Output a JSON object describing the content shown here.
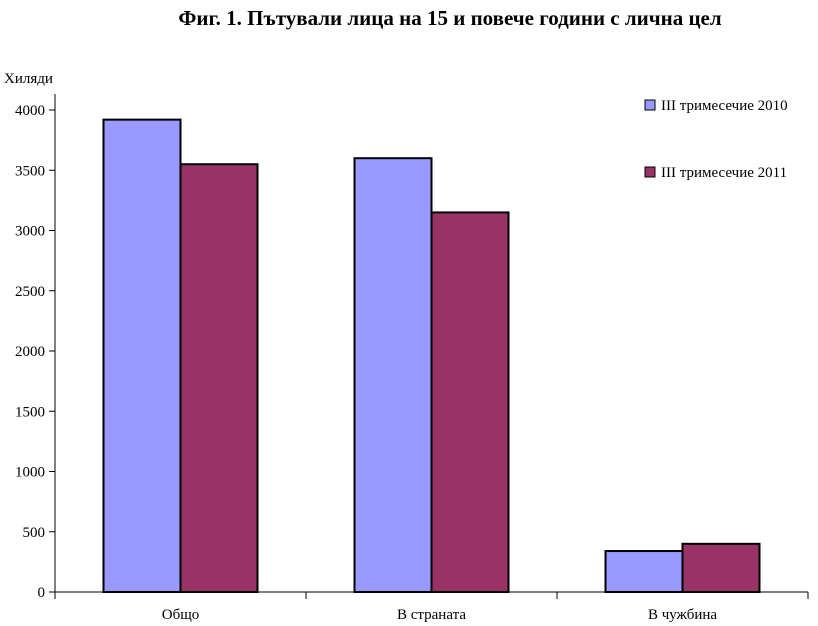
{
  "chart_data": {
    "type": "bar",
    "title": "Фиг. 1. Пътували лица на 15 и повече години с лична цел",
    "ylabel": "Хиляди",
    "xlabel": "",
    "categories": [
      "Общо",
      "В страната",
      "В чужбина"
    ],
    "series": [
      {
        "name": "III тримесечие 2010",
        "values": [
          3920,
          3600,
          340
        ],
        "color": "#9999ff"
      },
      {
        "name": "III тримесечие 2011",
        "values": [
          3550,
          3150,
          400
        ],
        "color": "#993366"
      }
    ],
    "ylim": [
      0,
      4000
    ],
    "yticks": [
      0,
      500,
      1000,
      1500,
      2000,
      2500,
      3000,
      3500,
      4000
    ],
    "grid": false,
    "legend": "top-right"
  }
}
